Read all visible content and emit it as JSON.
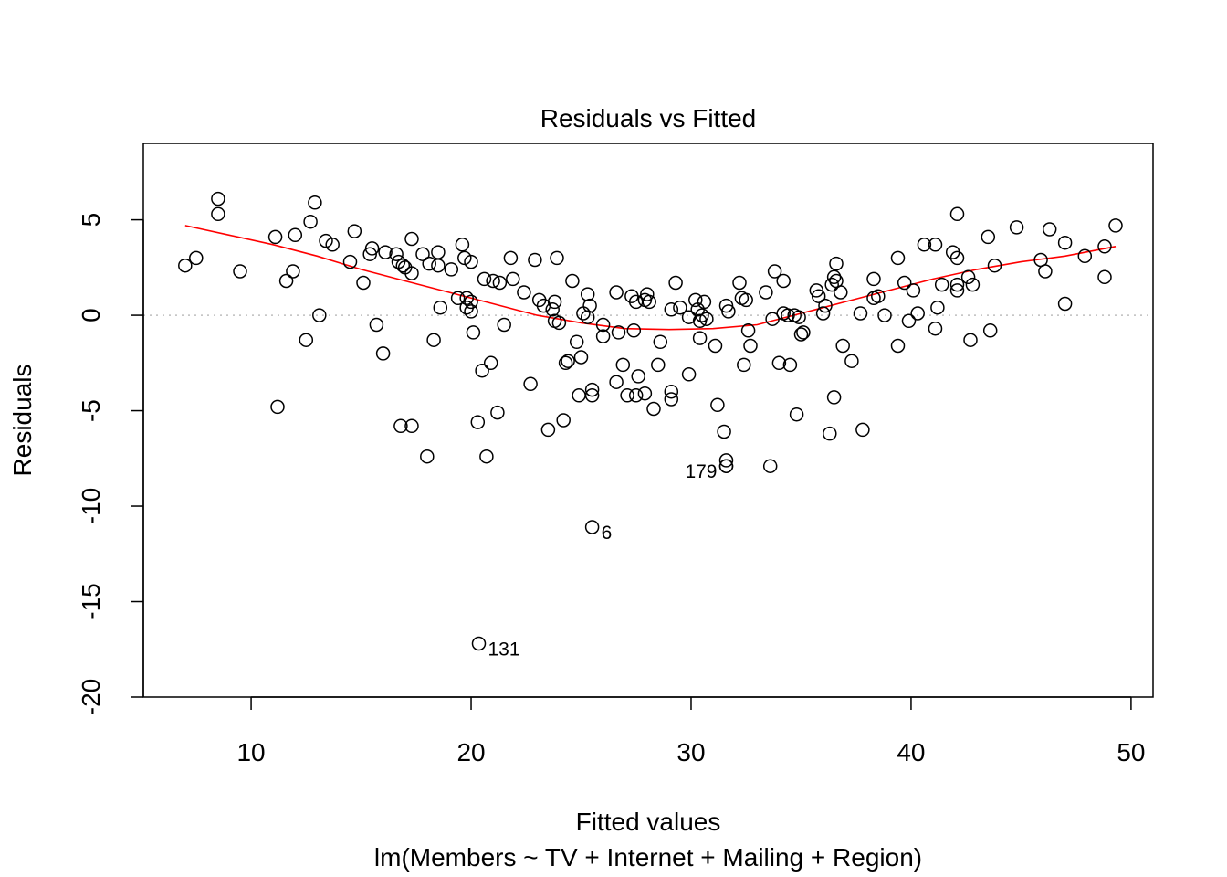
{
  "chart_data": {
    "type": "scatter",
    "title": "Residuals vs Fitted",
    "xlabel": "Fitted values",
    "subtitle": "lm(Members ~ TV + Internet + Mailing + Region)",
    "ylabel": "Residuals",
    "xlim": [
      5.1,
      51.0
    ],
    "ylim": [
      -20.0,
      9.0
    ],
    "xticks": [
      10,
      20,
      30,
      40,
      50
    ],
    "yticks": [
      -20,
      -15,
      -10,
      -5,
      0,
      5
    ],
    "xtick_labels": [
      "10",
      "20",
      "30",
      "40",
      "50"
    ],
    "ytick_labels": [
      "-20",
      "-15",
      "-10",
      "-5",
      "0",
      "5"
    ],
    "reference_line": {
      "y": 0,
      "style": "dotted",
      "color": "#bebebe"
    },
    "smooth_color": "#ff0000",
    "point_color": "#000000",
    "smooth": [
      [
        7.0,
        4.7
      ],
      [
        9.0,
        4.2
      ],
      [
        11.0,
        3.7
      ],
      [
        13.0,
        3.1
      ],
      [
        15.0,
        2.4
      ],
      [
        17.0,
        1.8
      ],
      [
        19.0,
        1.2
      ],
      [
        21.0,
        0.6
      ],
      [
        23.0,
        0.0
      ],
      [
        25.0,
        -0.4
      ],
      [
        27.0,
        -0.7
      ],
      [
        29.0,
        -0.75
      ],
      [
        31.0,
        -0.7
      ],
      [
        33.0,
        -0.5
      ],
      [
        35.0,
        0.1
      ],
      [
        37.0,
        0.7
      ],
      [
        39.0,
        1.3
      ],
      [
        41.0,
        1.9
      ],
      [
        43.0,
        2.4
      ],
      [
        45.0,
        2.8
      ],
      [
        47.0,
        3.1
      ],
      [
        49.3,
        3.6
      ]
    ],
    "labeled_points": [
      {
        "x": 20.35,
        "y": -17.2,
        "label": "131",
        "side": "right"
      },
      {
        "x": 25.5,
        "y": -11.1,
        "label": "6",
        "side": "right"
      },
      {
        "x": 31.6,
        "y": -7.9,
        "label": "179",
        "side": "left"
      }
    ],
    "points": [
      [
        7.0,
        2.6
      ],
      [
        7.5,
        3.0
      ],
      [
        8.5,
        6.1
      ],
      [
        8.5,
        5.3
      ],
      [
        9.5,
        2.3
      ],
      [
        11.1,
        4.1
      ],
      [
        11.2,
        -4.8
      ],
      [
        11.6,
        1.8
      ],
      [
        11.9,
        2.3
      ],
      [
        12.0,
        4.2
      ],
      [
        12.5,
        -1.3
      ],
      [
        12.7,
        4.9
      ],
      [
        12.9,
        5.9
      ],
      [
        13.1,
        0.0
      ],
      [
        13.4,
        3.9
      ],
      [
        13.7,
        3.7
      ],
      [
        14.5,
        2.8
      ],
      [
        14.7,
        4.4
      ],
      [
        15.1,
        1.7
      ],
      [
        15.4,
        3.2
      ],
      [
        15.5,
        3.5
      ],
      [
        15.7,
        -0.5
      ],
      [
        16.0,
        -2.0
      ],
      [
        16.1,
        3.3
      ],
      [
        16.6,
        3.2
      ],
      [
        16.7,
        2.8
      ],
      [
        16.8,
        -5.8
      ],
      [
        16.9,
        2.6
      ],
      [
        17.0,
        2.5
      ],
      [
        17.3,
        -5.8
      ],
      [
        17.3,
        2.2
      ],
      [
        17.3,
        4.0
      ],
      [
        17.8,
        3.2
      ],
      [
        18.0,
        -7.4
      ],
      [
        18.1,
        2.7
      ],
      [
        18.3,
        -1.3
      ],
      [
        18.5,
        3.3
      ],
      [
        18.5,
        2.6
      ],
      [
        18.6,
        0.4
      ],
      [
        19.1,
        2.4
      ],
      [
        19.4,
        0.9
      ],
      [
        19.6,
        3.7
      ],
      [
        19.7,
        3.0
      ],
      [
        19.8,
        0.9
      ],
      [
        19.8,
        0.4
      ],
      [
        20.0,
        2.8
      ],
      [
        20.0,
        0.7
      ],
      [
        20.0,
        0.2
      ],
      [
        20.1,
        -0.9
      ],
      [
        20.3,
        -5.6
      ],
      [
        20.5,
        -2.9
      ],
      [
        20.6,
        1.9
      ],
      [
        20.7,
        -7.4
      ],
      [
        20.9,
        -2.5
      ],
      [
        21.0,
        1.8
      ],
      [
        21.2,
        -5.1
      ],
      [
        21.3,
        1.7
      ],
      [
        21.5,
        -0.5
      ],
      [
        21.8,
        3.0
      ],
      [
        21.9,
        1.9
      ],
      [
        22.4,
        1.2
      ],
      [
        22.7,
        -3.6
      ],
      [
        22.9,
        2.9
      ],
      [
        23.1,
        0.8
      ],
      [
        23.3,
        0.5
      ],
      [
        23.5,
        -6.0
      ],
      [
        23.7,
        0.3
      ],
      [
        23.8,
        -0.3
      ],
      [
        23.8,
        0.7
      ],
      [
        23.9,
        3.0
      ],
      [
        24.0,
        -0.4
      ],
      [
        24.2,
        -5.5
      ],
      [
        24.3,
        -2.5
      ],
      [
        24.4,
        -2.4
      ],
      [
        24.6,
        1.8
      ],
      [
        24.8,
        -1.4
      ],
      [
        24.9,
        -4.2
      ],
      [
        25.0,
        -2.2
      ],
      [
        25.1,
        0.1
      ],
      [
        25.3,
        -0.1
      ],
      [
        25.3,
        1.1
      ],
      [
        25.4,
        0.5
      ],
      [
        25.5,
        -4.2
      ],
      [
        25.5,
        -3.9
      ],
      [
        26.0,
        -0.5
      ],
      [
        26.0,
        -1.1
      ],
      [
        26.6,
        -3.5
      ],
      [
        26.6,
        1.2
      ],
      [
        26.7,
        -0.9
      ],
      [
        26.9,
        -2.6
      ],
      [
        27.1,
        -4.2
      ],
      [
        27.3,
        1.0
      ],
      [
        27.4,
        -0.8
      ],
      [
        27.5,
        0.7
      ],
      [
        27.5,
        -4.2
      ],
      [
        27.6,
        -3.2
      ],
      [
        27.9,
        0.8
      ],
      [
        27.9,
        -4.1
      ],
      [
        28.0,
        1.1
      ],
      [
        28.1,
        0.7
      ],
      [
        28.3,
        -4.9
      ],
      [
        28.5,
        -2.6
      ],
      [
        28.6,
        -1.4
      ],
      [
        29.1,
        -4.0
      ],
      [
        29.1,
        -4.4
      ],
      [
        29.1,
        0.3
      ],
      [
        29.3,
        1.7
      ],
      [
        29.5,
        0.4
      ],
      [
        29.9,
        -3.1
      ],
      [
        29.9,
        -0.1
      ],
      [
        30.2,
        0.8
      ],
      [
        30.3,
        0.3
      ],
      [
        30.4,
        -1.2
      ],
      [
        30.4,
        -0.3
      ],
      [
        30.5,
        0.0
      ],
      [
        30.6,
        0.7
      ],
      [
        30.7,
        -0.2
      ],
      [
        31.1,
        -1.6
      ],
      [
        31.2,
        -4.7
      ],
      [
        31.5,
        -6.1
      ],
      [
        31.6,
        -7.6
      ],
      [
        31.6,
        -7.9
      ],
      [
        31.6,
        0.5
      ],
      [
        31.7,
        0.2
      ],
      [
        32.2,
        1.7
      ],
      [
        32.3,
        0.9
      ],
      [
        32.4,
        -2.6
      ],
      [
        32.5,
        0.8
      ],
      [
        32.6,
        -0.8
      ],
      [
        32.7,
        -1.6
      ],
      [
        33.4,
        1.2
      ],
      [
        33.6,
        -7.9
      ],
      [
        33.7,
        -0.2
      ],
      [
        33.8,
        2.3
      ],
      [
        34.0,
        -2.5
      ],
      [
        34.2,
        0.1
      ],
      [
        34.2,
        1.8
      ],
      [
        34.4,
        0.0
      ],
      [
        34.5,
        -2.6
      ],
      [
        34.7,
        0.0
      ],
      [
        34.8,
        -5.2
      ],
      [
        34.9,
        -0.1
      ],
      [
        35.0,
        -1.0
      ],
      [
        35.1,
        -0.9
      ],
      [
        35.7,
        1.3
      ],
      [
        35.8,
        1.0
      ],
      [
        36.0,
        0.1
      ],
      [
        36.1,
        0.5
      ],
      [
        36.3,
        -6.2
      ],
      [
        36.4,
        1.6
      ],
      [
        36.5,
        2.0
      ],
      [
        36.5,
        -4.3
      ],
      [
        36.6,
        1.8
      ],
      [
        36.6,
        2.7
      ],
      [
        36.8,
        1.2
      ],
      [
        36.9,
        -1.6
      ],
      [
        37.3,
        -2.4
      ],
      [
        37.7,
        0.1
      ],
      [
        37.8,
        -6.0
      ],
      [
        38.3,
        1.9
      ],
      [
        38.3,
        0.9
      ],
      [
        38.5,
        1.0
      ],
      [
        38.8,
        0.0
      ],
      [
        39.4,
        -1.6
      ],
      [
        39.4,
        3.0
      ],
      [
        39.7,
        1.7
      ],
      [
        39.9,
        -0.3
      ],
      [
        40.1,
        1.3
      ],
      [
        40.3,
        0.1
      ],
      [
        40.6,
        3.7
      ],
      [
        41.1,
        -0.7
      ],
      [
        41.1,
        3.7
      ],
      [
        41.2,
        0.4
      ],
      [
        41.4,
        1.6
      ],
      [
        41.9,
        3.3
      ],
      [
        42.1,
        5.3
      ],
      [
        42.1,
        3.0
      ],
      [
        42.1,
        1.6
      ],
      [
        42.1,
        1.3
      ],
      [
        42.6,
        2.0
      ],
      [
        42.7,
        -1.3
      ],
      [
        42.8,
        1.6
      ],
      [
        43.5,
        4.1
      ],
      [
        43.6,
        -0.8
      ],
      [
        43.8,
        2.6
      ],
      [
        44.8,
        4.6
      ],
      [
        45.9,
        2.9
      ],
      [
        46.1,
        2.3
      ],
      [
        46.3,
        4.5
      ],
      [
        47.0,
        0.6
      ],
      [
        47.0,
        3.8
      ],
      [
        47.9,
        3.1
      ],
      [
        48.8,
        2.0
      ],
      [
        48.8,
        3.6
      ],
      [
        49.3,
        4.7
      ]
    ]
  }
}
